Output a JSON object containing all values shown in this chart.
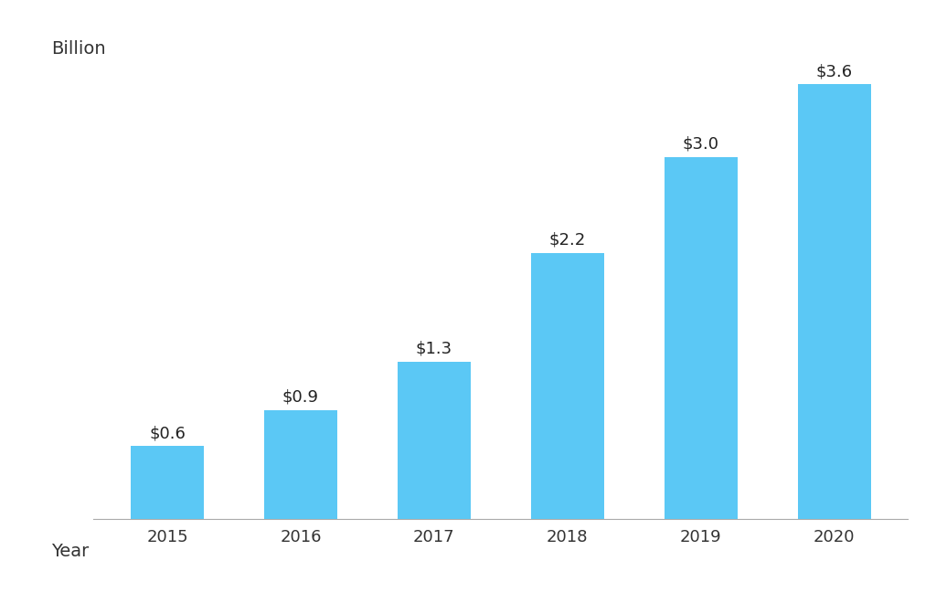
{
  "categories": [
    "2015",
    "2016",
    "2017",
    "2018",
    "2019",
    "2020"
  ],
  "values": [
    0.6,
    0.9,
    1.3,
    2.2,
    3.0,
    3.6
  ],
  "labels": [
    "$0.6",
    "$0.9",
    "$1.3",
    "$2.2",
    "$3.0",
    "$3.6"
  ],
  "bar_color": "#5BC8F5",
  "background_color": "#ffffff",
  "xlabel": "Year",
  "ylabel": "Billion",
  "ylim": [
    0,
    3.9
  ],
  "grid_color": "#cccccc",
  "label_fontsize": 13,
  "axis_label_fontsize": 14,
  "tick_fontsize": 13,
  "bar_width": 0.55
}
